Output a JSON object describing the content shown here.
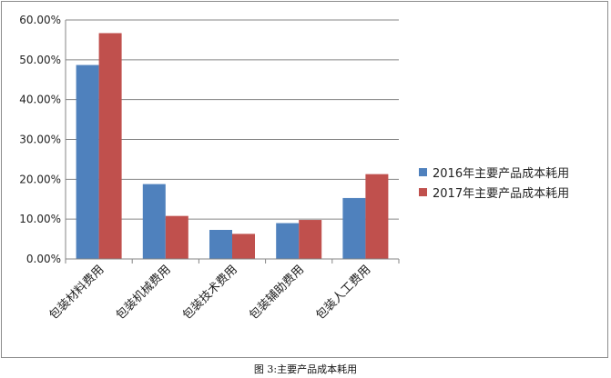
{
  "chart_data": {
    "type": "bar",
    "categories": [
      "包装材料费用",
      "包装机械费用",
      "包装技术费用",
      "包装辅助费用",
      "包装人工费用"
    ],
    "series": [
      {
        "name": "2016年主要产品成本耗用",
        "values": [
          48.7,
          18.8,
          7.3,
          9.0,
          15.3
        ],
        "color": "#4f81bd"
      },
      {
        "name": "2017年主要产品成本耗用",
        "values": [
          56.7,
          10.8,
          6.3,
          9.8,
          21.3
        ],
        "color": "#c0504d"
      }
    ],
    "ylim": [
      0,
      60
    ],
    "yticks": [
      "0.00%",
      "10.00%",
      "20.00%",
      "30.00%",
      "40.00%",
      "50.00%",
      "60.00%"
    ],
    "grid": true,
    "legend_position": "right"
  },
  "caption": "图 3:主要产品成本耗用"
}
